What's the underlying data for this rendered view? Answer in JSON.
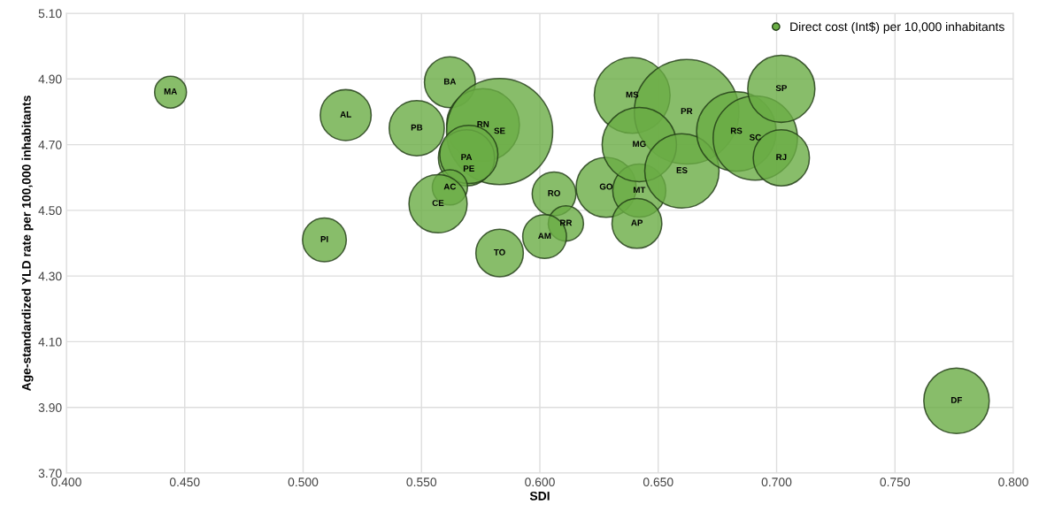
{
  "chart_data": {
    "type": "bubble",
    "xlabel": "SDI",
    "ylabel": "Age-standardized YLD rate per 100,000 inhabitants",
    "legend": "top right",
    "grid": true,
    "marker": "circle",
    "xlim": [
      0.4,
      0.8
    ],
    "ylim": [
      3.7,
      5.1
    ],
    "xticks": [
      {
        "value": 0.4,
        "label": "0.400"
      },
      {
        "value": 0.45,
        "label": "0.450"
      },
      {
        "value": 0.5,
        "label": "0.500"
      },
      {
        "value": 0.55,
        "label": "0.550"
      },
      {
        "value": 0.6,
        "label": "0.600"
      },
      {
        "value": 0.65,
        "label": "0.650"
      },
      {
        "value": 0.7,
        "label": "0.700"
      },
      {
        "value": 0.75,
        "label": "0.750"
      },
      {
        "value": 0.8,
        "label": "0.800"
      }
    ],
    "yticks": [
      {
        "value": 3.7,
        "label": "3.70"
      },
      {
        "value": 3.9,
        "label": "3.90"
      },
      {
        "value": 4.1,
        "label": "4.10"
      },
      {
        "value": 4.3,
        "label": "4.30"
      },
      {
        "value": 4.5,
        "label": "4.50"
      },
      {
        "value": 4.7,
        "label": "4.70"
      },
      {
        "value": 4.9,
        "label": "4.90"
      },
      {
        "value": 5.1,
        "label": "5.10"
      }
    ],
    "series": [
      {
        "name": "Direct cost (Int$) per 10,000 inhabitants",
        "color": "#6aad45",
        "x": [
          0.444,
          0.518,
          0.509,
          0.562,
          0.548,
          0.576,
          0.583,
          0.569,
          0.57,
          0.562,
          0.557,
          0.583,
          0.606,
          0.611,
          0.602,
          0.628,
          0.642,
          0.641,
          0.639,
          0.662,
          0.642,
          0.66,
          0.683,
          0.691,
          0.702,
          0.702,
          0.776
        ],
        "values": [
          4.86,
          4.79,
          4.41,
          4.89,
          4.75,
          4.76,
          4.74,
          4.66,
          4.67,
          4.57,
          4.52,
          4.37,
          4.55,
          4.46,
          4.42,
          4.57,
          4.56,
          4.46,
          4.85,
          4.8,
          4.7,
          4.62,
          4.74,
          4.72,
          4.66,
          4.87,
          3.92
        ],
        "sizes": [
          0.09,
          0.23,
          0.17,
          0.23,
          0.27,
          0.47,
          1,
          0.28,
          0.3,
          0.11,
          0.3,
          0.2,
          0.17,
          0.11,
          0.17,
          0.32,
          0.25,
          0.22,
          0.51,
          0.97,
          0.49,
          0.49,
          0.56,
          0.63,
          0.28,
          0.4,
          0.38
        ]
      }
    ],
    "annotations": [
      {
        "text": "MA",
        "x": 0.444,
        "y": 4.86
      },
      {
        "text": "AL",
        "x": 0.518,
        "y": 4.79
      },
      {
        "text": "PI",
        "x": 0.509,
        "y": 4.41
      },
      {
        "text": "BA",
        "x": 0.562,
        "y": 4.89
      },
      {
        "text": "PB",
        "x": 0.548,
        "y": 4.75
      },
      {
        "text": "RN",
        "x": 0.576,
        "y": 4.76
      },
      {
        "text": "SE",
        "x": 0.583,
        "y": 4.74
      },
      {
        "text": "PA",
        "x": 0.569,
        "y": 4.66
      },
      {
        "text": "PE",
        "x": 0.57,
        "y": 4.67
      },
      {
        "text": "AC",
        "x": 0.562,
        "y": 4.57
      },
      {
        "text": "CE",
        "x": 0.557,
        "y": 4.52
      },
      {
        "text": "TO",
        "x": 0.583,
        "y": 4.37
      },
      {
        "text": "RO",
        "x": 0.606,
        "y": 4.55
      },
      {
        "text": "RR",
        "x": 0.611,
        "y": 4.46
      },
      {
        "text": "AM",
        "x": 0.602,
        "y": 4.42
      },
      {
        "text": "GO",
        "x": 0.628,
        "y": 4.57
      },
      {
        "text": "MT",
        "x": 0.642,
        "y": 4.56
      },
      {
        "text": "AP",
        "x": 0.641,
        "y": 4.46
      },
      {
        "text": "MS",
        "x": 0.639,
        "y": 4.85
      },
      {
        "text": "PR",
        "x": 0.662,
        "y": 4.8
      },
      {
        "text": "MG",
        "x": 0.642,
        "y": 4.7
      },
      {
        "text": "ES",
        "x": 0.66,
        "y": 4.62
      },
      {
        "text": "RS",
        "x": 0.683,
        "y": 4.74
      },
      {
        "text": "SC",
        "x": 0.691,
        "y": 4.72
      },
      {
        "text": "RJ",
        "x": 0.702,
        "y": 4.66
      },
      {
        "text": "SP",
        "x": 0.702,
        "y": 4.87
      },
      {
        "text": "DF",
        "x": 0.776,
        "y": 3.92
      }
    ]
  }
}
